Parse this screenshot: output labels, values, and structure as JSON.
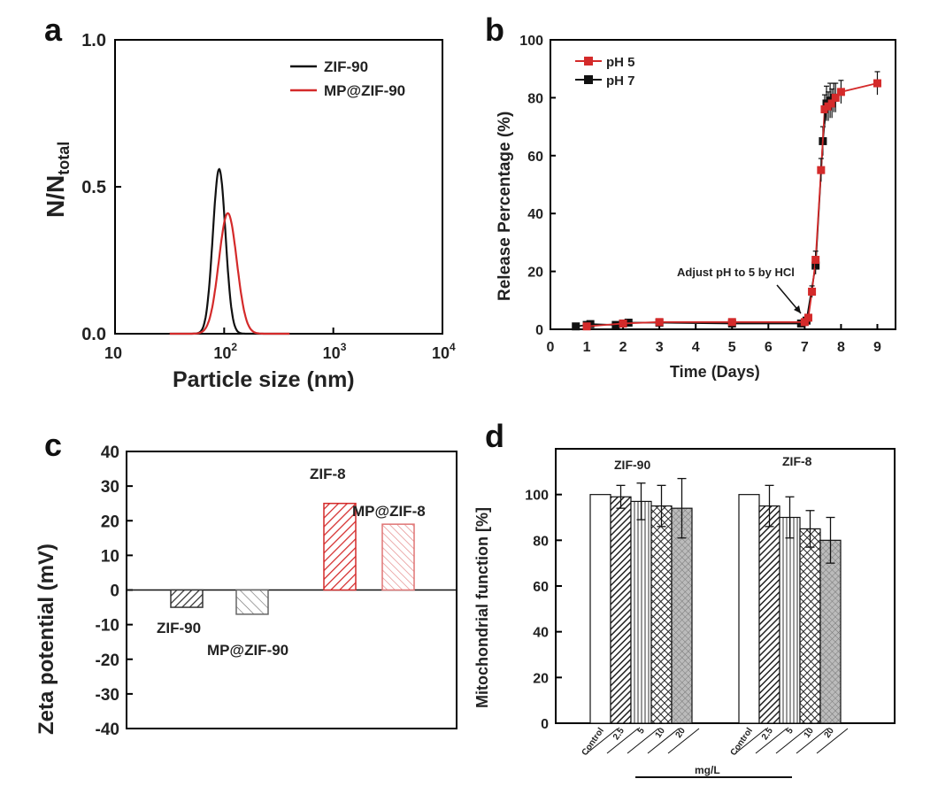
{
  "panels": {
    "a": "a",
    "b": "b",
    "c": "c",
    "d": "d"
  },
  "colors": {
    "black": "#111111",
    "red": "#d42a2a",
    "pink": "#e07575",
    "gray": "#555555"
  },
  "chart_data": [
    {
      "id": "a",
      "type": "line",
      "xlabel": "Particle size (nm)",
      "ylabel_main": "N/N",
      "ylabel_sub": "total",
      "xscale": "log",
      "xlim": [
        10,
        10000
      ],
      "ylim": [
        0,
        1.0
      ],
      "xticks": [
        {
          "base": "10",
          "exp": ""
        },
        {
          "base": "10",
          "exp": "2"
        },
        {
          "base": "10",
          "exp": "3"
        },
        {
          "base": "10",
          "exp": "4"
        }
      ],
      "yticks": [
        "0.0",
        "0.5",
        "1.0"
      ],
      "legend_position": "top-right",
      "series": [
        {
          "name": "ZIF-90",
          "color": "#111111",
          "peak_x": 90,
          "peak_y": 0.56,
          "sigma": 0.058
        },
        {
          "name": "MP@ZIF-90",
          "color": "#d42a2a",
          "peak_x": 108,
          "peak_y": 0.41,
          "sigma": 0.082
        }
      ]
    },
    {
      "id": "b",
      "type": "line",
      "xlabel": "Time (Days)",
      "ylabel": "Release Percentage (%)",
      "xlim": [
        0,
        9.5
      ],
      "ylim": [
        0,
        100
      ],
      "xticks": [
        "0",
        "1",
        "2",
        "3",
        "4",
        "5",
        "6",
        "7",
        "8",
        "9"
      ],
      "yticks": [
        "0",
        "20",
        "40",
        "60",
        "80",
        "100"
      ],
      "legend_position": "top-left",
      "annotation": {
        "text": "Adjust pH to 5 by HCl",
        "x": 7.0,
        "y": 3
      },
      "series": [
        {
          "name": "pH 5",
          "color": "#d42a2a",
          "points": [
            [
              1,
              1
            ],
            [
              2,
              2
            ],
            [
              3,
              2.5
            ],
            [
              5,
              2.5
            ],
            [
              7,
              2.5
            ],
            [
              7.1,
              4
            ],
            [
              7.2,
              13
            ],
            [
              7.3,
              24
            ],
            [
              7.45,
              55
            ],
            [
              7.55,
              76
            ],
            [
              7.65,
              77
            ],
            [
              7.75,
              78
            ],
            [
              7.85,
              80
            ],
            [
              8,
              82
            ],
            [
              9,
              85
            ]
          ],
          "errors": [
            0.5,
            0.5,
            0.5,
            0.5,
            0.5,
            1,
            2,
            3,
            4,
            5,
            5,
            5,
            5,
            4,
            4
          ]
        },
        {
          "name": "pH 7",
          "color": "#111111",
          "points": [
            [
              0.7,
              1
            ],
            [
              1,
              1.5
            ],
            [
              1.1,
              1.8
            ],
            [
              1.8,
              1.5
            ],
            [
              2,
              2
            ],
            [
              2.15,
              2.3
            ],
            [
              3,
              2.3
            ],
            [
              5,
              2
            ],
            [
              6.9,
              2
            ],
            [
              7.05,
              3
            ],
            [
              7.3,
              22
            ],
            [
              7.5,
              65
            ],
            [
              7.6,
              78
            ],
            [
              7.7,
              79
            ],
            [
              7.8,
              80
            ]
          ],
          "errors": [
            0.5,
            0.5,
            0.5,
            0.5,
            0.5,
            0.5,
            0.5,
            0.5,
            0.5,
            1,
            3,
            5,
            6,
            6,
            5
          ]
        }
      ]
    },
    {
      "id": "c",
      "type": "bar",
      "ylabel": "Zeta potential (mV)",
      "ylim": [
        -40,
        40
      ],
      "yticks": [
        "40",
        "30",
        "20",
        "10",
        "0",
        "-10",
        "-20",
        "-30",
        "-40"
      ],
      "categories": [
        "ZIF-90",
        "MP@ZIF-90",
        "ZIF-8",
        "MP@ZIF-8"
      ],
      "values": [
        -5,
        -7,
        25,
        19
      ],
      "bar_colors": [
        "#333333",
        "#666666",
        "#d42a2a",
        "#e07575"
      ],
      "hatch": [
        "dense",
        "sparse",
        "dense",
        "sparse"
      ]
    },
    {
      "id": "d",
      "type": "bar",
      "ylabel": "Mitochondrial function [%]",
      "xlabel": "mg/L",
      "ylim": [
        0,
        120
      ],
      "yticks": [
        "0",
        "20",
        "40",
        "60",
        "80",
        "100"
      ],
      "categories": [
        "Control",
        "2.5",
        "5",
        "10",
        "20"
      ],
      "groups": [
        {
          "name": "ZIF-90",
          "values": [
            100,
            99,
            97,
            95,
            94
          ],
          "errors": [
            0,
            5,
            8,
            9,
            13
          ]
        },
        {
          "name": "ZIF-8",
          "values": [
            100,
            95,
            90,
            85,
            80
          ],
          "errors": [
            0,
            9,
            9,
            8,
            10
          ]
        }
      ],
      "patterns": [
        "open",
        "diagonal",
        "vertical",
        "crosshatch",
        "gray-cross"
      ]
    }
  ]
}
